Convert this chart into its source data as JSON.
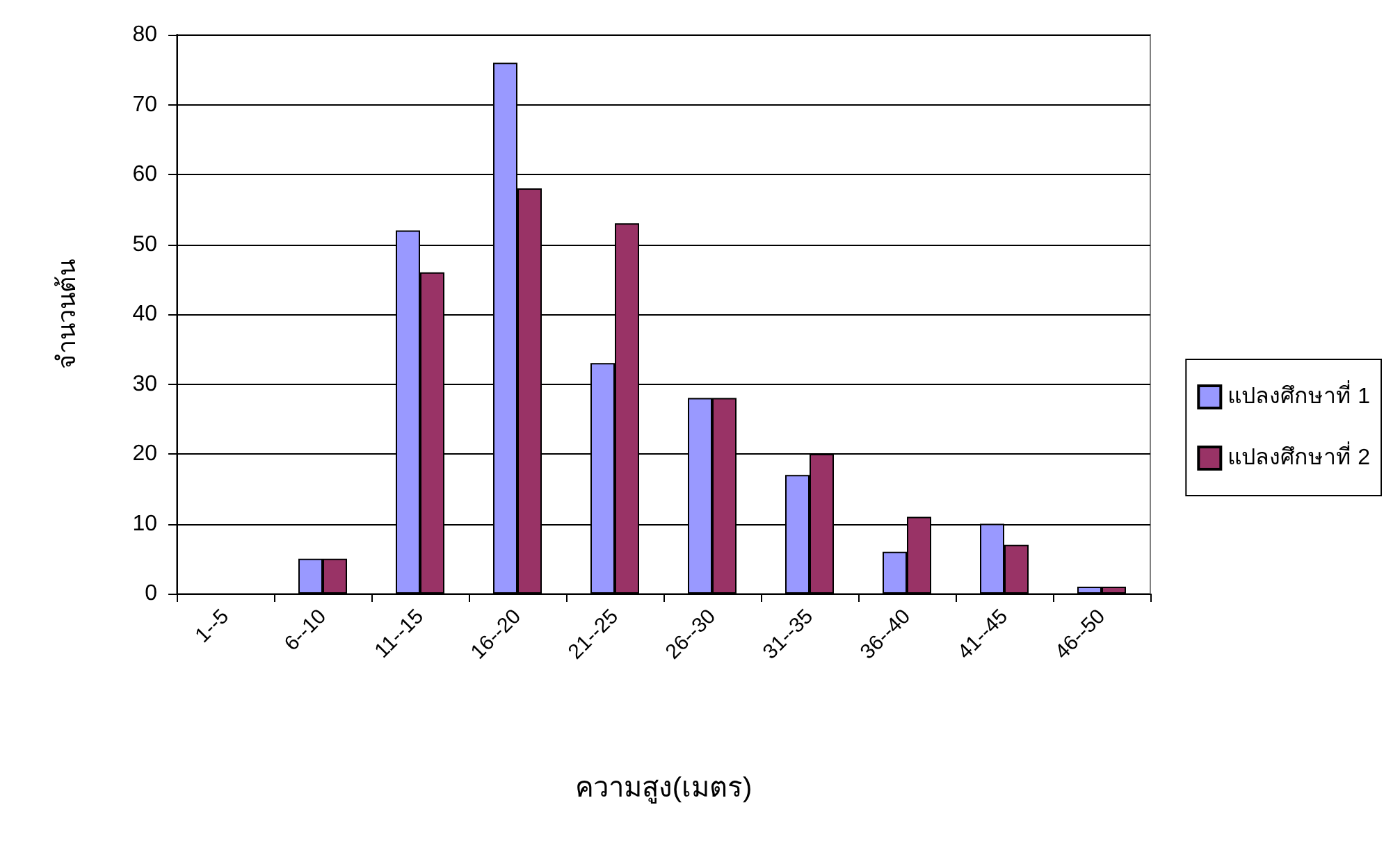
{
  "chart_data": {
    "type": "bar",
    "xlabel": "ความสูง(เมตร)",
    "ylabel": "จำนวนต้น",
    "categories": [
      "1--5",
      "6--10",
      "11--15",
      "16--20",
      "21--25",
      "26--30",
      "31--35",
      "36--40",
      "41--45",
      "46--50"
    ],
    "series": [
      {
        "name": "แปลงศึกษาที่ 1",
        "color": "#9999ff",
        "values": [
          0,
          5,
          52,
          76,
          33,
          28,
          17,
          6,
          10,
          1
        ]
      },
      {
        "name": "แปลงศึกษาที่ 2",
        "color": "#993366",
        "values": [
          0,
          5,
          46,
          58,
          53,
          28,
          20,
          11,
          7,
          1
        ]
      }
    ],
    "ylim": [
      0,
      80
    ],
    "yticks": [
      0,
      10,
      20,
      30,
      40,
      50,
      60,
      70,
      80
    ],
    "grid": "y",
    "legend": "right"
  }
}
